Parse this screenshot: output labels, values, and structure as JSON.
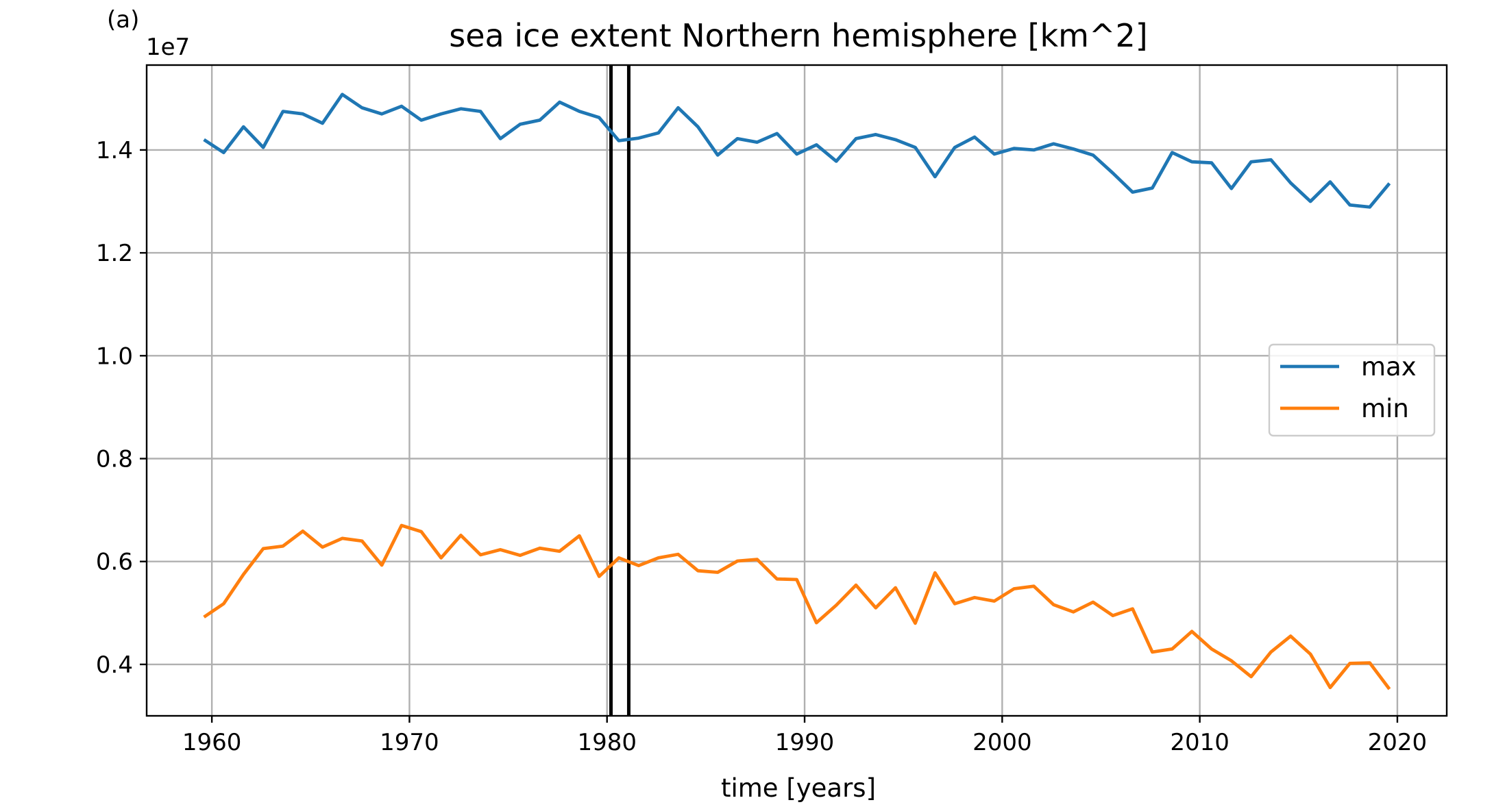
{
  "panel_label": "(a)",
  "chart_data": {
    "type": "line",
    "title": "sea ice extent Northern hemisphere [km^2]",
    "xlabel": "time [years]",
    "ylabel": "",
    "y_offset_label": "1e7",
    "xlim": [
      1956.7,
      2022.5
    ],
    "ylim": [
      0.3,
      1.565
    ],
    "x_ticks": [
      1960,
      1970,
      1980,
      1990,
      2000,
      2010,
      2020
    ],
    "x_tick_labels": [
      "1960",
      "1970",
      "1980",
      "1990",
      "2000",
      "2010",
      "2020"
    ],
    "y_ticks": [
      0.4,
      0.6,
      0.8,
      1.0,
      1.2,
      1.4
    ],
    "y_tick_labels": [
      "0.4",
      "0.6",
      "0.8",
      "1.0",
      "1.2",
      "1.4"
    ],
    "grid": true,
    "legend_position": "right",
    "vertical_lines": [
      1980.2,
      1981.1
    ],
    "x": [
      1959.6,
      1960.6,
      1961.6,
      1962.6,
      1963.6,
      1964.6,
      1965.6,
      1966.6,
      1967.6,
      1968.6,
      1969.6,
      1970.6,
      1971.6,
      1972.6,
      1973.6,
      1974.6,
      1975.6,
      1976.6,
      1977.6,
      1978.6,
      1979.6,
      1980.6,
      1981.6,
      1982.6,
      1983.6,
      1984.6,
      1985.6,
      1986.6,
      1987.6,
      1988.6,
      1989.6,
      1990.6,
      1991.6,
      1992.6,
      1993.6,
      1994.6,
      1995.6,
      1996.6,
      1997.6,
      1998.6,
      1999.6,
      2000.6,
      2001.6,
      2002.6,
      2003.6,
      2004.6,
      2005.6,
      2006.6,
      2007.6,
      2008.6,
      2009.6,
      2010.6,
      2011.6,
      2012.6,
      2013.6,
      2014.6,
      2015.6,
      2016.6,
      2017.6,
      2018.6,
      2019.6
    ],
    "series": [
      {
        "name": "max",
        "color": "#1f77b4",
        "values": [
          1.42,
          1.395,
          1.445,
          1.405,
          1.475,
          1.47,
          1.452,
          1.508,
          1.482,
          1.47,
          1.485,
          1.458,
          1.47,
          1.48,
          1.475,
          1.422,
          1.45,
          1.458,
          1.493,
          1.475,
          1.463,
          1.418,
          1.423,
          1.433,
          1.482,
          1.445,
          1.39,
          1.422,
          1.415,
          1.432,
          1.392,
          1.41,
          1.378,
          1.422,
          1.43,
          1.42,
          1.405,
          1.348,
          1.405,
          1.425,
          1.392,
          1.403,
          1.4,
          1.412,
          1.402,
          1.39,
          1.355,
          1.318,
          1.326,
          1.395,
          1.377,
          1.375,
          1.325,
          1.377,
          1.381,
          1.336,
          1.3,
          1.338,
          1.293,
          1.289,
          1.335
        ]
      },
      {
        "name": "min",
        "color": "#ff7f0e",
        "values": [
          0.492,
          0.518,
          0.575,
          0.625,
          0.63,
          0.659,
          0.628,
          0.645,
          0.64,
          0.593,
          0.67,
          0.658,
          0.607,
          0.651,
          0.613,
          0.623,
          0.612,
          0.626,
          0.62,
          0.65,
          0.571,
          0.607,
          0.592,
          0.607,
          0.614,
          0.582,
          0.579,
          0.601,
          0.604,
          0.566,
          0.565,
          0.481,
          0.515,
          0.554,
          0.51,
          0.549,
          0.48,
          0.578,
          0.518,
          0.53,
          0.523,
          0.547,
          0.552,
          0.516,
          0.502,
          0.521,
          0.495,
          0.508,
          0.424,
          0.43,
          0.464,
          0.43,
          0.407,
          0.376,
          0.424,
          0.455,
          0.42,
          0.355,
          0.402,
          0.403,
          0.352
        ]
      }
    ]
  }
}
